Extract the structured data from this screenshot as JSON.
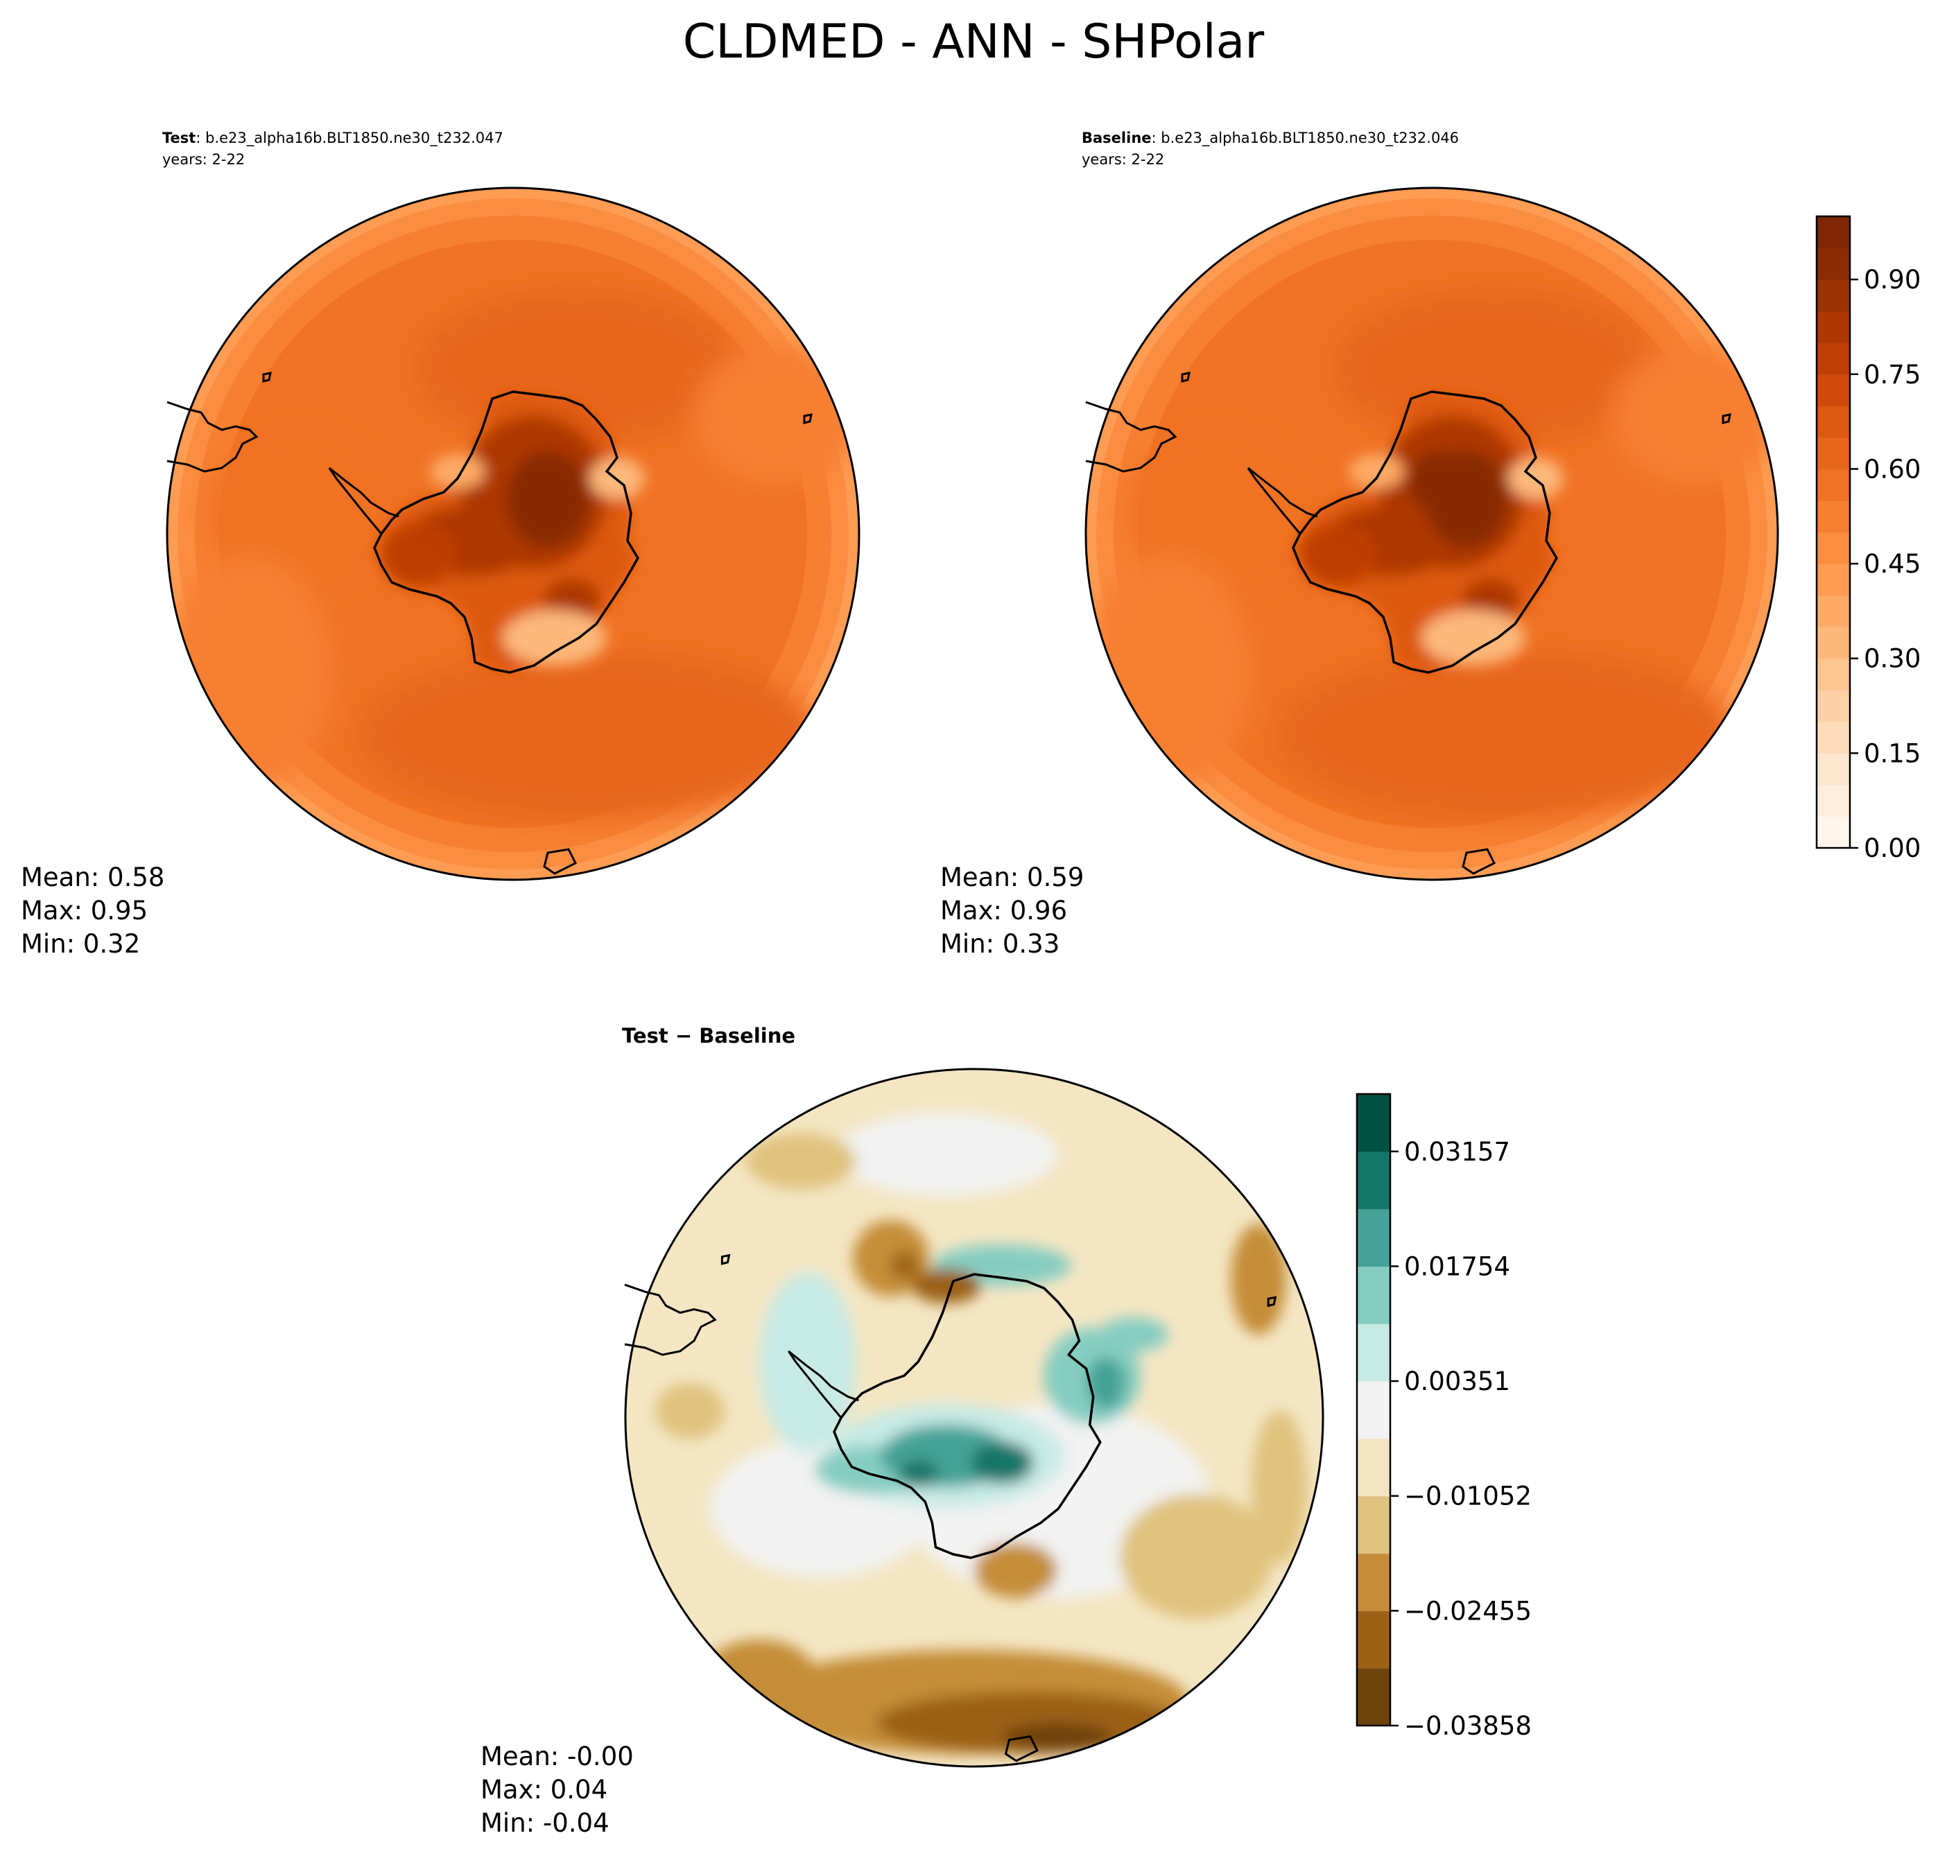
{
  "title": "CLDMED - ANN - SHPolar",
  "panels": {
    "test": {
      "label_bold": "Test",
      "label_rest": ": b.e23_alpha16b.BLT1850.ne30_t232.047",
      "years": "years: 2-22",
      "stats": {
        "mean": "Mean:  0.58",
        "max": "Max:  0.95",
        "min": "Min:  0.32"
      }
    },
    "baseline": {
      "label_bold": "Baseline",
      "label_rest": ": b.e23_alpha16b.BLT1850.ne30_t232.046",
      "years": "years: 2-22",
      "stats": {
        "mean": "Mean:  0.59",
        "max": "Max:  0.96",
        "min": "Min:  0.33"
      }
    },
    "diff": {
      "title": "Test − Baseline",
      "stats": {
        "mean": "Mean: -0.00",
        "max": "Max:  0.04",
        "min": "Min: -0.04"
      }
    }
  },
  "chart_data": [
    {
      "type": "heatmap",
      "title": "Test",
      "subtitle": "b.e23_alpha16b.BLT1850.ne30_t232.047, years: 2-22",
      "projection": "south polar stereographic",
      "summary": {
        "mean": 0.58,
        "max": 0.95,
        "min": 0.32
      },
      "colorbar": {
        "colormap": "Oranges",
        "range": [
          0.0,
          1.0
        ],
        "ticks": [
          "0.00",
          "0.15",
          "0.30",
          "0.45",
          "0.60",
          "0.75",
          "0.90"
        ],
        "levels": 20
      }
    },
    {
      "type": "heatmap",
      "title": "Baseline",
      "subtitle": "b.e23_alpha16b.BLT1850.ne30_t232.046, years: 2-22",
      "projection": "south polar stereographic",
      "summary": {
        "mean": 0.59,
        "max": 0.96,
        "min": 0.33
      },
      "colorbar_shared_with": "Test"
    },
    {
      "type": "heatmap",
      "title": "Test − Baseline",
      "projection": "south polar stereographic",
      "summary": {
        "mean": -0.0,
        "max": 0.04,
        "min": -0.04
      },
      "colorbar": {
        "colormap": "BrBG",
        "ticks": [
          "0.03157",
          "0.01754",
          "0.00351",
          "−0.01052",
          "−0.02455",
          "−0.03858"
        ],
        "levels": 11
      }
    }
  ],
  "colors": {
    "oranges": [
      "#fff5eb",
      "#ffeedd",
      "#fee6cf",
      "#fddcbc",
      "#fdd1a7",
      "#fdc590",
      "#fdb87a",
      "#fdaa66",
      "#fd9c52",
      "#fb8d41",
      "#f67f31",
      "#f07224",
      "#e8661a",
      "#dd5811",
      "#d14a0c",
      "#c03e05",
      "#ad3803",
      "#9a3203",
      "#882c03",
      "#7f2704"
    ],
    "brbg": [
      "#6f430c",
      "#9b6116",
      "#c58d39",
      "#dfc27d",
      "#f4e6c3",
      "#f2f3f2",
      "#c7eae5",
      "#86cdc1",
      "#44a298",
      "#157569",
      "#00513f"
    ],
    "outline": "#000000"
  }
}
